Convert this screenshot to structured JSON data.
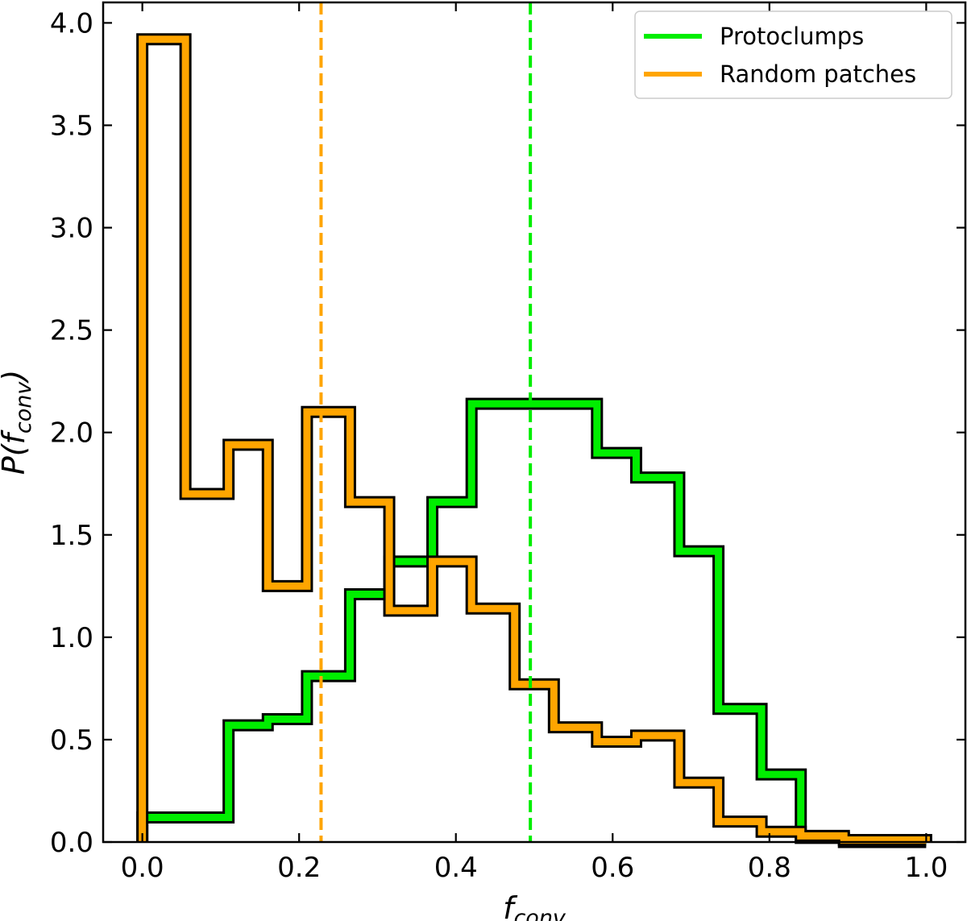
{
  "chart_data": {
    "type": "step-histogram",
    "xlabel": "f",
    "xlabel_sub": "conv",
    "ylabel": "P(f",
    "ylabel_sub": "conv",
    "ylabel_close": ")",
    "xlim": [
      -0.05,
      1.05
    ],
    "ylim": [
      0.0,
      4.1
    ],
    "xticks": [
      0.0,
      0.2,
      0.4,
      0.6,
      0.8,
      1.0
    ],
    "xtick_labels": [
      "0.0",
      "0.2",
      "0.4",
      "0.6",
      "0.8",
      "1.0"
    ],
    "yticks": [
      0.0,
      0.5,
      1.0,
      1.5,
      2.0,
      2.5,
      3.0,
      3.5,
      4.0
    ],
    "ytick_labels": [
      "0.0",
      "0.5",
      "1.0",
      "1.5",
      "2.0",
      "2.5",
      "3.0",
      "3.5",
      "4.0"
    ],
    "bin_edges": [
      0.0,
      0.055,
      0.11,
      0.16,
      0.21,
      0.265,
      0.315,
      0.37,
      0.42,
      0.475,
      0.525,
      0.58,
      0.63,
      0.685,
      0.735,
      0.79,
      0.84,
      0.895,
      0.945,
      1.0
    ],
    "series": [
      {
        "name": "Protoclumps",
        "color": "#00ee00",
        "values": [
          0.12,
          0.12,
          0.57,
          0.6,
          0.81,
          1.21,
          1.37,
          1.66,
          2.14,
          2.14,
          2.14,
          1.9,
          1.78,
          1.42,
          0.65,
          0.33,
          0.02,
          0.0,
          0.0
        ],
        "median": 0.495
      },
      {
        "name": "Random patches",
        "color": "#ffa500",
        "values": [
          3.92,
          1.7,
          1.94,
          1.25,
          2.1,
          1.66,
          1.13,
          1.37,
          1.14,
          0.77,
          0.56,
          0.49,
          0.52,
          0.29,
          0.1,
          0.05,
          0.03,
          0.01,
          0.01
        ],
        "median": 0.228
      }
    ],
    "legend_position": "top-right"
  }
}
